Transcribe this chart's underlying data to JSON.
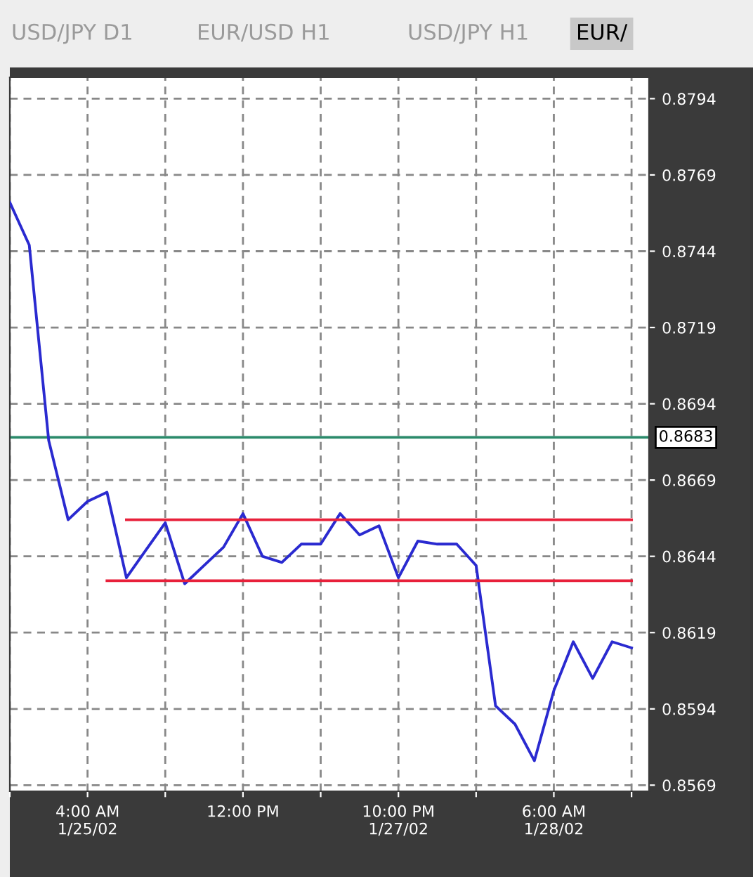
{
  "chart_data": {
    "type": "line",
    "annotations": [
      "USD/JPY D1",
      "EUR/USD H1",
      "USD/JPY H1",
      "EUR/"
    ],
    "series": [
      {
        "color": "#2a2ad0",
        "values": [
          0.876,
          0.8746,
          0.8682,
          0.8656,
          0.8662,
          0.8665,
          0.8637,
          0.8646,
          0.8655,
          0.8635,
          0.8641,
          0.8647,
          0.8658,
          0.8644,
          0.8642,
          0.8648,
          0.8648,
          0.8658,
          0.8651,
          0.8654,
          0.8637,
          0.8649,
          0.8648,
          0.8648,
          0.8641,
          0.8595,
          0.8589,
          0.8577,
          0.86,
          0.8616,
          0.8604,
          0.8616,
          0.8614
        ]
      },
      {
        "color": "#e8203a",
        "values": [
          null,
          null,
          null,
          null,
          null,
          null,
          0.8656,
          0.8656,
          0.8656,
          0.8656,
          0.8656,
          0.8656,
          0.8656,
          0.8656,
          0.8656,
          0.8656,
          0.8656,
          0.8656,
          0.8656,
          0.8656,
          0.8656,
          0.8656,
          0.8656,
          0.8656,
          0.8656,
          0.8656,
          0.8656,
          0.8656,
          0.8656,
          0.8656,
          0.8656,
          0.8656,
          0.8656
        ]
      },
      {
        "color": "#e8203a",
        "values": [
          null,
          null,
          null,
          null,
          null,
          0.8636,
          0.8636,
          0.8636,
          0.8636,
          0.8636,
          0.8636,
          0.8636,
          0.8636,
          0.8636,
          0.8636,
          0.8636,
          0.8636,
          0.8636,
          0.8636,
          0.8636,
          0.8636,
          0.8636,
          0.8636,
          0.8636,
          0.8636,
          0.8636,
          0.8636,
          0.8636,
          0.8636,
          0.8636,
          0.8636,
          0.8636,
          0.8636
        ]
      }
    ],
    "ref_lines": [
      {
        "axis": "y",
        "value": 0.8683,
        "label": "0.8683",
        "color": "#2a8a6a"
      }
    ],
    "categories": [
      null,
      null,
      null,
      null,
      "4:00 AM\n1/25/02",
      null,
      null,
      null,
      null,
      null,
      null,
      null,
      "12:00 PM",
      null,
      null,
      null,
      null,
      null,
      null,
      null,
      "10:00 PM\n1/27/02",
      null,
      null,
      null,
      null,
      null,
      null,
      null,
      "6:00 AM\n1/28/02",
      null,
      null,
      null,
      null
    ],
    "ylim": [
      0.8567,
      0.8801
    ],
    "yticks": [
      {
        "value": 0.8569,
        "label": "0.8569"
      },
      {
        "value": 0.8594,
        "label": "0.8594"
      },
      {
        "value": 0.8619,
        "label": "0.8619"
      },
      {
        "value": 0.8644,
        "label": "0.8644"
      },
      {
        "value": 0.8669,
        "label": "0.8669"
      },
      {
        "value": 0.8694,
        "label": "0.8694"
      },
      {
        "value": 0.8719,
        "label": "0.8719"
      },
      {
        "value": 0.8744,
        "label": "0.8744"
      },
      {
        "value": 0.8769,
        "label": "0.8769"
      },
      {
        "value": 0.8794,
        "label": "0.8794"
      }
    ],
    "grid": true,
    "line_style": "solid",
    "legend": false
  }
}
